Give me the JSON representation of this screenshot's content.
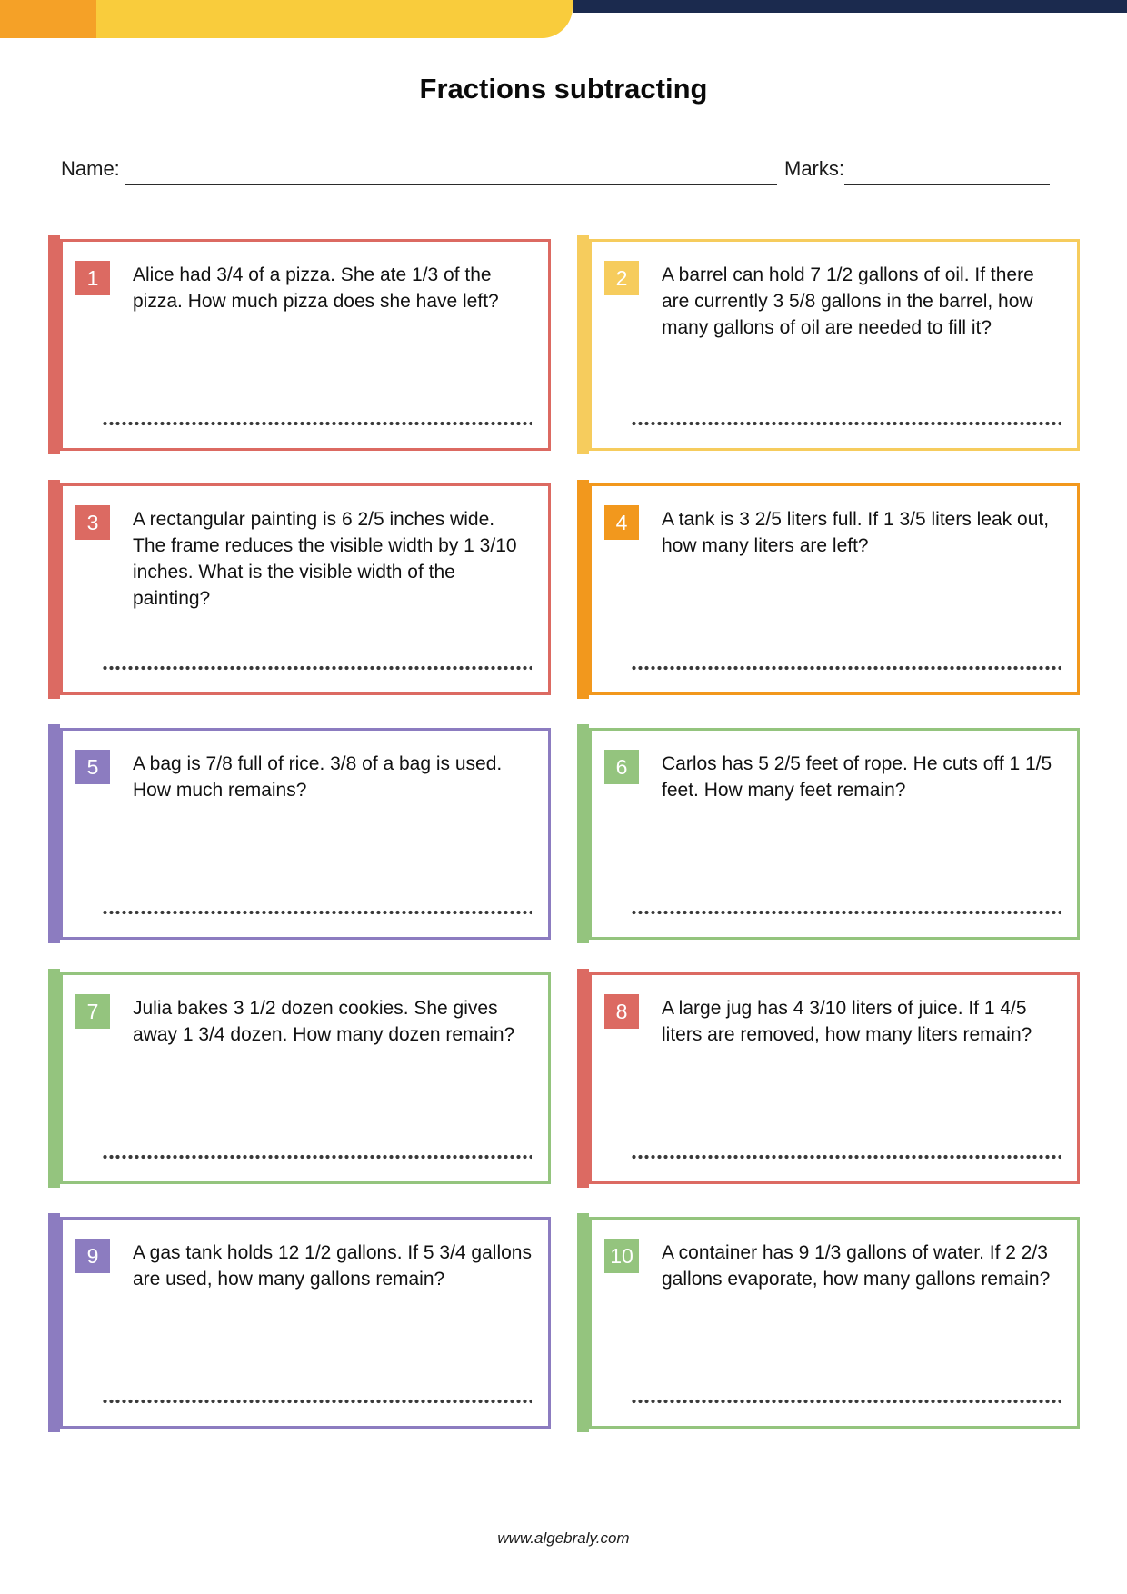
{
  "header": {
    "title": "Fractions subtracting",
    "name_label": "Name:",
    "marks_label": "Marks:"
  },
  "colors": {
    "band_orange": "#F5A127",
    "band_yellow": "#F9CC3C",
    "band_navy": "#1B2A4E",
    "card_red": "#DC6A62",
    "card_yellow": "#F6CC5D",
    "card_orange": "#F2981D",
    "card_purple": "#8C7CC0",
    "card_green": "#94C47E"
  },
  "questions": [
    {
      "number": "1",
      "color": "#DC6A62",
      "text": "Alice had 3/4 of a pizza. She ate 1/3 of the pizza. How much pizza does she have left?"
    },
    {
      "number": "2",
      "color": "#F6CC5D",
      "text": "A barrel can hold 7 1/2 gallons of oil. If there are currently 3 5/8 gallons in the barrel, how many gallons of oil are needed to fill it?"
    },
    {
      "number": "3",
      "color": "#DC6A62",
      "text": "A rectangular painting is 6 2/5 inches wide. The frame reduces the visible width by 1 3/10 inches. What is the visible width of the painting?"
    },
    {
      "number": "4",
      "color": "#F2981D",
      "text": "A tank is 3 2/5 liters full. If 1 3/5 liters leak out, how many liters are left?"
    },
    {
      "number": "5",
      "color": "#8C7CC0",
      "text": "A bag is 7/8 full of rice. 3/8 of a bag is used. How much remains?"
    },
    {
      "number": "6",
      "color": "#94C47E",
      "text": "Carlos has 5 2/5 feet of rope. He cuts off 1 1/5 feet. How many feet remain?"
    },
    {
      "number": "7",
      "color": "#94C47E",
      "text": "Julia bakes 3 1/2 dozen cookies. She gives away 1 3/4 dozen. How many dozen remain?"
    },
    {
      "number": "8",
      "color": "#DC6A62",
      "text": "A large jug has 4 3/10 liters of juice. If 1 4/5 liters are removed, how many liters remain?"
    },
    {
      "number": "9",
      "color": "#8C7CC0",
      "text": "A gas tank holds 12 1/2 gallons. If 5 3/4 gallons are used, how many gallons remain?"
    },
    {
      "number": "10",
      "color": "#94C47E",
      "text": "A container has 9 1/3 gallons of water. If 2 2/3 gallons evaporate, how many gallons remain?"
    }
  ],
  "footer": {
    "website": "www.algebraly.com"
  }
}
